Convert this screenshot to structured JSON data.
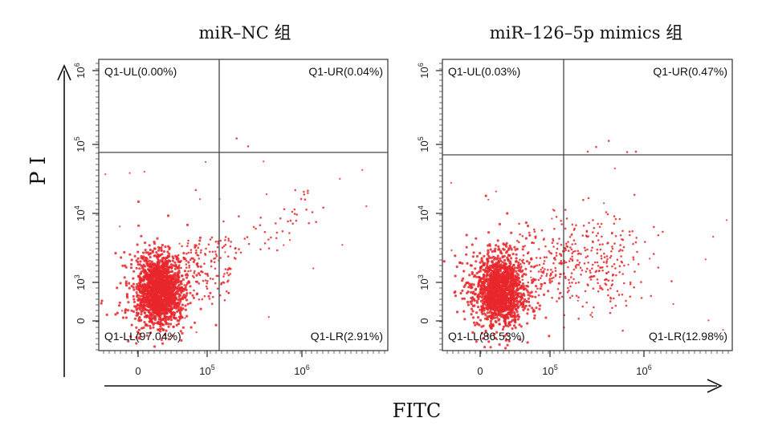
{
  "chart_data": [
    {
      "type": "scatter",
      "title": "miR–NC 组",
      "xlabel": "FITC",
      "ylabel": "PI",
      "x_tick_labels": [
        "0",
        "10^5",
        "10^6"
      ],
      "y_tick_labels": [
        "0",
        "10^3",
        "10^4",
        "10^5",
        "10^6"
      ],
      "gate": {
        "x": 130000,
        "y": 70000
      },
      "quadrants": [
        {
          "name": "Q1-UL",
          "label": "Q1-UL(0.00%)",
          "percent": 0.0,
          "position": "top-left"
        },
        {
          "name": "Q1-UR",
          "label": "Q1-UR(0.04%)",
          "percent": 0.04,
          "position": "top-right"
        },
        {
          "name": "Q1-LL",
          "label": "Q1-LL(97.04%)",
          "percent": 97.04,
          "position": "bottom-left"
        },
        {
          "name": "Q1-LR",
          "label": "Q1-LR(2.91%)",
          "percent": 2.91,
          "position": "bottom-right"
        }
      ],
      "point_color": "#e8272c"
    },
    {
      "type": "scatter",
      "title": "miR–126–5p mimics 组",
      "xlabel": "FITC",
      "ylabel": "PI",
      "x_tick_labels": [
        "0",
        "10^5",
        "10^6"
      ],
      "y_tick_labels": [
        "0",
        "10^3",
        "10^4",
        "10^5",
        "10^6"
      ],
      "gate": {
        "x": 130000,
        "y": 70000
      },
      "quadrants": [
        {
          "name": "Q1-UL",
          "label": "Q1-UL(0.03%)",
          "percent": 0.03,
          "position": "top-left"
        },
        {
          "name": "Q1-UR",
          "label": "Q1-UR(0.47%)",
          "percent": 0.47,
          "position": "top-right"
        },
        {
          "name": "Q1-LL",
          "label": "Q1-LL(86.53%)",
          "percent": 86.53,
          "position": "bottom-left"
        },
        {
          "name": "Q1-LR",
          "label": "Q1-LR(12.98%)",
          "percent": 12.98,
          "position": "bottom-right"
        }
      ],
      "point_color": "#e8272c"
    }
  ],
  "figure": {
    "x_axis_label": "FITC",
    "y_axis_label": "P I"
  }
}
